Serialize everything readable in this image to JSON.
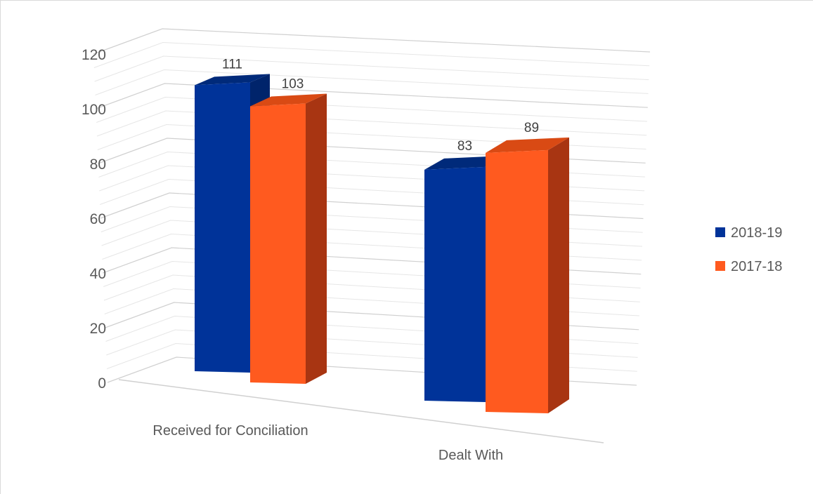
{
  "chart_data": {
    "type": "bar",
    "style": "3d-clustered-column",
    "categories": [
      "Received for Conciliation",
      "Dealt With"
    ],
    "series": [
      {
        "name": "2018-19",
        "values": [
          111,
          83
        ],
        "color": "#003399",
        "top_color": "#002a7a",
        "side_color": "#00246b"
      },
      {
        "name": "2017-18",
        "values": [
          103,
          89
        ],
        "color": "#ff5a1f",
        "top_color": "#d94a14",
        "side_color": "#a83512"
      }
    ],
    "yticks": [
      0,
      20,
      40,
      60,
      80,
      100,
      120
    ],
    "ylim": [
      0,
      120
    ],
    "grid": true,
    "legend_position": "right",
    "title": "",
    "xlabel": "",
    "ylabel": ""
  }
}
